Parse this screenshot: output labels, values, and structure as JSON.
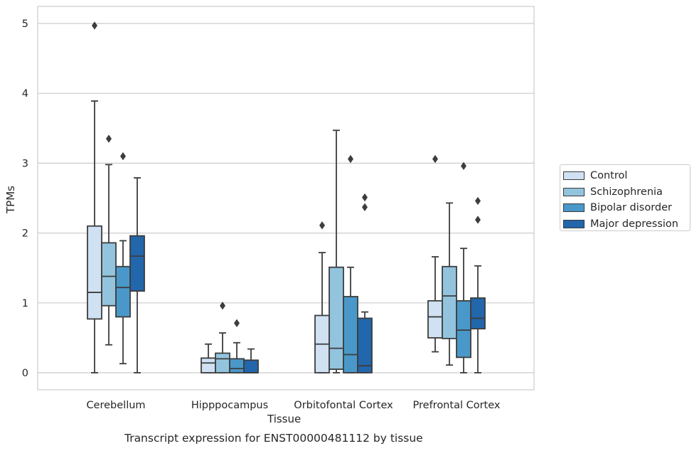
{
  "chart_data": {
    "type": "box",
    "title": "",
    "caption": "Transcript expression for ENST00000481112 by tissue",
    "xlabel": "Tissue",
    "ylabel": "TPMs",
    "ylim": [
      -0.25,
      5.23
    ],
    "yticks": [
      "0",
      "1",
      "2",
      "3",
      "4",
      "5"
    ],
    "grid": "horizontal",
    "legend_position": "right",
    "categories": [
      "Cerebellum",
      "Hipppocampus",
      "Orbitofontal Cortex",
      "Prefrontal Cortex"
    ],
    "series": [
      {
        "name": "Control",
        "color": "#cfe1f2",
        "boxes": [
          {
            "min": 0.0,
            "q1": 0.77,
            "median": 1.15,
            "q3": 2.1,
            "max": 3.89,
            "outliers": [
              4.97
            ]
          },
          {
            "min": 0.0,
            "q1": 0.0,
            "median": 0.14,
            "q3": 0.21,
            "max": 0.41,
            "outliers": []
          },
          {
            "min": 0.0,
            "q1": 0.0,
            "median": 0.41,
            "q3": 0.82,
            "max": 1.72,
            "outliers": [
              2.11
            ]
          },
          {
            "min": 0.3,
            "q1": 0.5,
            "median": 0.8,
            "q3": 1.03,
            "max": 1.66,
            "outliers": [
              3.06
            ]
          }
        ]
      },
      {
        "name": "Schizophrenia",
        "color": "#93c4de",
        "boxes": [
          {
            "min": 0.4,
            "q1": 0.96,
            "median": 1.38,
            "q3": 1.86,
            "max": 2.98,
            "outliers": [
              3.35
            ]
          },
          {
            "min": 0.0,
            "q1": 0.0,
            "median": 0.2,
            "q3": 0.28,
            "max": 0.57,
            "outliers": [
              0.96
            ]
          },
          {
            "min": 0.0,
            "q1": 0.05,
            "median": 0.35,
            "q3": 1.51,
            "max": 3.47,
            "outliers": []
          },
          {
            "min": 0.11,
            "q1": 0.49,
            "median": 1.1,
            "q3": 1.52,
            "max": 2.43,
            "outliers": []
          }
        ]
      },
      {
        "name": "Bipolar disorder",
        "color": "#4a98c9",
        "boxes": [
          {
            "min": 0.13,
            "q1": 0.8,
            "median": 1.22,
            "q3": 1.52,
            "max": 1.89,
            "outliers": [
              3.1
            ]
          },
          {
            "min": 0.0,
            "q1": 0.0,
            "median": 0.06,
            "q3": 0.2,
            "max": 0.43,
            "outliers": [
              0.71
            ]
          },
          {
            "min": 0.0,
            "q1": 0.0,
            "median": 0.26,
            "q3": 1.09,
            "max": 1.51,
            "outliers": [
              3.06
            ]
          },
          {
            "min": 0.0,
            "q1": 0.22,
            "median": 0.61,
            "q3": 1.03,
            "max": 1.78,
            "outliers": [
              2.96
            ]
          }
        ]
      },
      {
        "name": "Major depression",
        "color": "#2266ac",
        "boxes": [
          {
            "min": 0.0,
            "q1": 1.17,
            "median": 1.67,
            "q3": 1.96,
            "max": 2.79,
            "outliers": []
          },
          {
            "min": 0.0,
            "q1": 0.0,
            "median": 0.0,
            "q3": 0.18,
            "max": 0.34,
            "outliers": []
          },
          {
            "min": 0.0,
            "q1": 0.0,
            "median": 0.1,
            "q3": 0.78,
            "max": 0.87,
            "outliers": [
              2.37,
              2.51
            ]
          },
          {
            "min": 0.0,
            "q1": 0.63,
            "median": 0.78,
            "q3": 1.07,
            "max": 1.53,
            "outliers": [
              2.19,
              2.46
            ]
          }
        ]
      }
    ]
  }
}
